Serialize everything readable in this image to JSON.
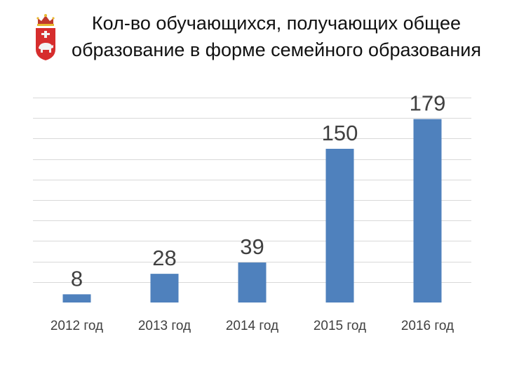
{
  "title": "Кол-во обучающихся, получающих общее образование в форме семейного образования",
  "emblem": {
    "icon": "perm-krai-coat-of-arms-icon"
  },
  "colors": {
    "bar": "#4f81bd",
    "gridline": "#d9d9d9",
    "label": "#404040"
  },
  "chart_data": {
    "type": "bar",
    "title": "Кол-во обучающихся, получающих общее образование в форме семейного образования",
    "categories": [
      "2012 год",
      "2013 год",
      "2014 год",
      "2015 год",
      "2016 год"
    ],
    "values": [
      8,
      28,
      39,
      150,
      179
    ],
    "data_labels": [
      "8",
      "28",
      "39",
      "150",
      "179"
    ],
    "xlabel": "",
    "ylabel": "",
    "ylim": [
      0,
      200
    ],
    "grid": true,
    "legend": "none"
  }
}
